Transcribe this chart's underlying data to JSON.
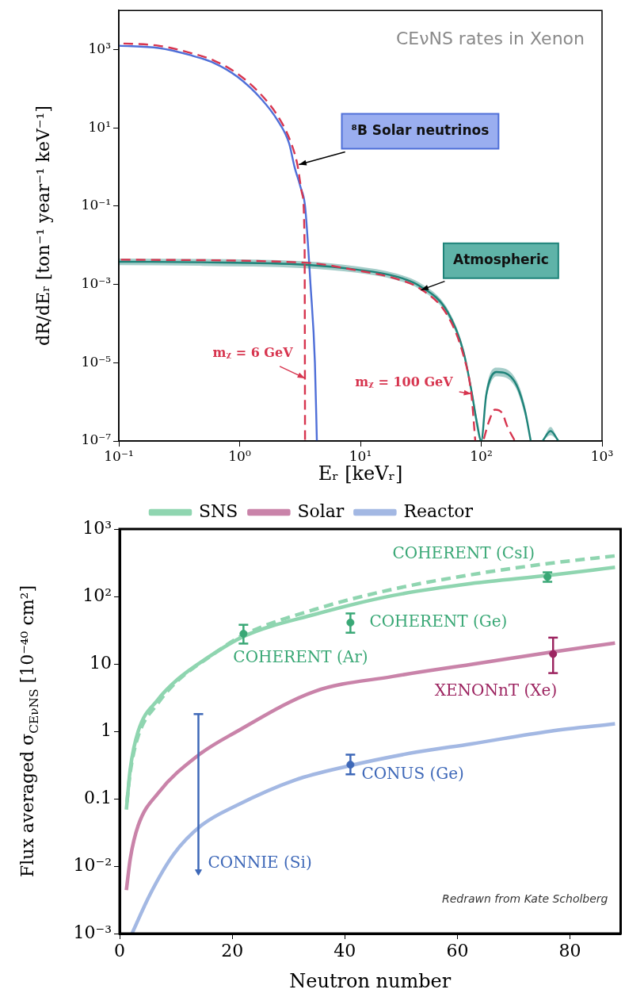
{
  "chart_data": [
    {
      "type": "line",
      "title": "CEνNS rates in Xenon",
      "xlabel": "Eᵣ [keVᵣ]",
      "ylabel": "dR/dEᵣ [ton⁻¹ year⁻¹ keV⁻¹]",
      "log": "xy",
      "xlim": [
        0.1,
        1000
      ],
      "xticks": [
        {
          "value": 0.1,
          "label": "10⁻¹"
        },
        {
          "value": 1,
          "label": "10⁰"
        },
        {
          "value": 10,
          "label": "10¹"
        },
        {
          "value": 100,
          "label": "10²"
        },
        {
          "value": 1000,
          "label": "10³"
        }
      ],
      "ylim": [
        1e-07,
        10000
      ],
      "yticks": [
        {
          "value": 1e-07,
          "label": "10⁻⁷"
        },
        {
          "value": 1e-05,
          "label": "10⁻⁵"
        },
        {
          "value": 0.001,
          "label": "10⁻³"
        },
        {
          "value": 0.1,
          "label": "10⁻¹"
        },
        {
          "value": 10,
          "label": "10¹"
        },
        {
          "value": 1000,
          "label": "10³"
        }
      ],
      "grid": false,
      "legend": false,
      "marker": "none",
      "annotations": [
        {
          "text": "⁸B Solar neutrinos",
          "x": 3.1,
          "y": 1.15
        },
        {
          "text": "Atmospheric",
          "x": 31.7,
          "y": 0.00072
        },
        {
          "text": "mᵪ = 6 GeV",
          "x": 3.48,
          "y": 4e-06
        },
        {
          "text": "mᵪ = 100 GeV",
          "x": 82.8,
          "y": 1.6e-06
        }
      ],
      "series": [
        {
          "color": "#4f6fd8",
          "x": [
            0.1,
            0.213,
            0.389,
            0.612,
            0.964,
            1.51,
            2.05,
            2.57,
            2.85,
            3.2,
            3.48,
            3.86,
            4.2,
            4.36
          ],
          "values": [
            1260,
            1100,
            725,
            457,
            200,
            55,
            16,
            4,
            1,
            0.3,
            0.1,
            0.001,
            1e-05,
            1e-07
          ]
        },
        {
          "color": "#1e8379",
          "x": [
            0.1,
            0.453,
            3.48,
            9.27,
            19.7,
            31,
            52.6,
            71,
            82.8,
            92,
            100,
            110,
            134,
            190,
            230,
            257,
            290,
            322,
            375,
            436
          ],
          "values": [
            0.0038,
            0.0037,
            0.0032,
            0.0024,
            0.0016,
            0.00091,
            0.0002,
            2e-05,
            2e-06,
            3e-07,
            1e-07,
            1.5e-06,
            5.8e-06,
            3.2e-06,
            6e-07,
            1e-07,
            null,
            1e-07,
            1.8e-07,
            1e-07
          ],
          "upper": [
            0.0046,
            0.0045,
            0.0039,
            0.0029,
            0.0019,
            0.0011,
            0.00024,
            2.5e-05,
            2.6e-06,
            4e-07,
            1e-07,
            2e-06,
            7.5e-06,
            4.2e-06,
            8e-07,
            1e-07,
            null,
            1e-07,
            2.3e-07,
            1e-07
          ],
          "lower": [
            0.0031,
            0.003,
            0.0026,
            0.002,
            0.0013,
            0.00075,
            0.00016,
            1.6e-05,
            1.6e-06,
            2e-07,
            1e-07,
            1.1e-06,
            4.5e-06,
            2.5e-06,
            4.5e-07,
            1e-07,
            null,
            1e-07,
            1.4e-07,
            1e-07
          ]
        },
        {
          "color": "#d7354f",
          "line_style": "dashed",
          "x": [
            0.1,
            0.213,
            0.389,
            0.612,
            0.964,
            1.51,
            2.05,
            2.57,
            3.0,
            3.3,
            3.45,
            3.48
          ],
          "values": [
            1450,
            1260,
            830,
            525,
            240,
            70,
            21,
            5.5,
            1.2,
            0.2,
            0.01,
            1e-07
          ]
        },
        {
          "color": "#d7354f",
          "line_style": "dashed",
          "x": [
            0.1,
            3.48,
            9.27,
            19.7,
            31,
            52.6,
            71,
            82.8,
            89.3,
            95,
            104,
            116,
            130,
            150,
            163,
            190
          ],
          "values": [
            0.0043,
            0.0036,
            0.0023,
            0.0014,
            0.00079,
            0.00016,
            1.6e-05,
            1.6e-06,
            1e-07,
            null,
            1e-07,
            3.2e-07,
            6.3e-07,
            5e-07,
            2.5e-07,
            1e-07
          ]
        }
      ]
    },
    {
      "type": "line",
      "xlabel": "Neutron number",
      "ylabel": "Flux averaged σ$_{CEνNS}$ [10⁻⁴⁰ cm²]",
      "log": "y",
      "xlim": [
        0,
        89
      ],
      "xticks": [
        0,
        20,
        40,
        60,
        80
      ],
      "ylim": [
        0.001,
        1000
      ],
      "yticks": [
        {
          "value": 0.001,
          "label": "10⁻³"
        },
        {
          "value": 0.01,
          "label": "10⁻²"
        },
        0.1,
        1,
        10,
        {
          "value": 100,
          "label": "10²"
        },
        {
          "value": 1000,
          "label": "10³"
        }
      ],
      "grid": false,
      "legend": "top",
      "marker": "none",
      "annotations": [
        "Redrawn from Kate Scholberg"
      ],
      "series": [
        {
          "name": "SNS",
          "color": "#8fd5b0",
          "x": [
            1.2,
            1.9,
            3.3,
            6.8,
            10.3,
            15.2,
            22.1,
            34.6,
            48.5,
            62.4,
            76.4,
            88
          ],
          "values": [
            0.069,
            0.28,
            1.0,
            2.95,
            5.9,
            11.7,
            25.7,
            54,
            103,
            155,
            206,
            270
          ]
        },
        {
          "color": "#8fd5b0",
          "line_style": "dashed",
          "x": [
            1.2,
            1.9,
            3.3,
            6.8,
            10.3,
            15.2,
            22.1,
            34.6,
            48.5,
            62.4,
            76.4,
            88
          ],
          "values": [
            0.075,
            0.25,
            0.85,
            2.6,
            5.6,
            11.5,
            27,
            64,
            128,
            210,
            310,
            400
          ]
        },
        {
          "name": "Solar",
          "color": "#c983a9",
          "x": [
            1.2,
            1.9,
            3.3,
            6.8,
            13.8,
            20.7,
            34.6,
            48.5,
            62.4,
            76.4,
            88
          ],
          "values": [
            0.0044,
            0.013,
            0.04,
            0.12,
            0.43,
            0.98,
            3.9,
            6.5,
            9.8,
            14.8,
            20.4
          ]
        },
        {
          "name": "Reactor",
          "color": "#a3b8e3",
          "x": [
            2.2,
            5.4,
            9.6,
            14.5,
            20.7,
            31.2,
            40.2,
            52.7,
            62.4,
            76.4,
            88
          ],
          "values": [
            0.001,
            0.0038,
            0.015,
            0.04,
            0.079,
            0.19,
            0.3,
            0.49,
            0.65,
            1.0,
            1.29
          ]
        },
        {
          "type": "scatter",
          "name": "COHERENT (Ar)",
          "color": "#3aa876",
          "marker": "circle",
          "x": [
            22
          ],
          "values": [
            28
          ],
          "errors": [
            [
              20,
              38
            ]
          ]
        },
        {
          "type": "scatter",
          "name": "COHERENT (Ge)",
          "color": "#3aa876",
          "marker": "circle",
          "x": [
            41
          ],
          "values": [
            41
          ],
          "errors": [
            [
              29,
              56
            ]
          ]
        },
        {
          "type": "scatter",
          "name": "COHERENT (CsI)",
          "color": "#3aa876",
          "marker": "circle",
          "x": [
            76
          ],
          "values": [
            195
          ],
          "errors": [
            [
              165,
              228
            ]
          ]
        },
        {
          "type": "scatter",
          "name": "XENONnT (Xe)",
          "color": "#9c2460",
          "marker": "circle",
          "x": [
            77
          ],
          "values": [
            14
          ],
          "errors": [
            [
              7.3,
              24.5
            ]
          ]
        },
        {
          "type": "scatter",
          "name": "CONUS (Ge)",
          "color": "#3e68b8",
          "marker": "circle",
          "x": [
            41
          ],
          "values": [
            0.32
          ],
          "errors": [
            [
              0.23,
              0.45
            ]
          ]
        },
        {
          "type": "scatter",
          "name": "CONNIE (Si)",
          "color": "#3e68b8",
          "marker": "triangle",
          "x": [
            14
          ],
          "values": [
            0.0083
          ],
          "errors": [
            [
              0.0083,
              1.8
            ]
          ]
        }
      ]
    }
  ]
}
